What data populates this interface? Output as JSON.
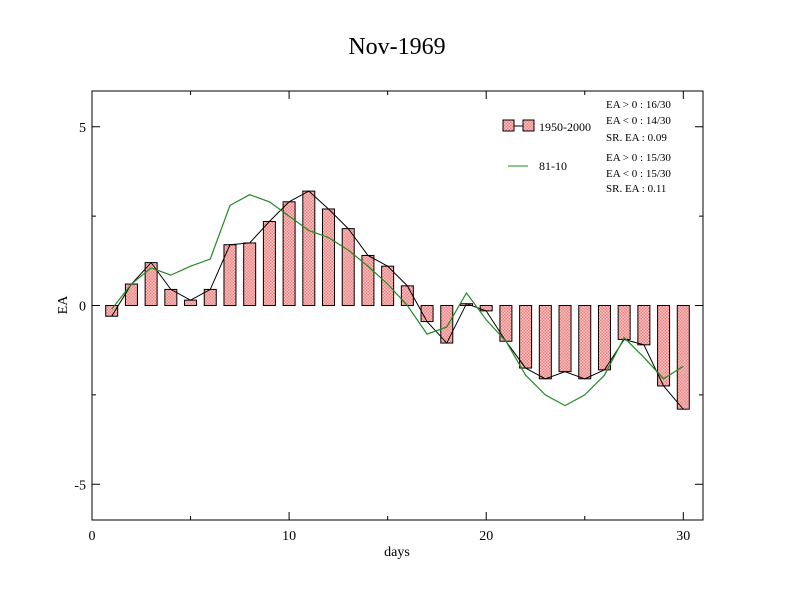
{
  "chart_data": {
    "type": "bar",
    "title": "Nov-1969",
    "xlabel": "days",
    "ylabel": "EA",
    "xlim": [
      0,
      31
    ],
    "ylim": [
      -6,
      6
    ],
    "x_ticks": [
      0,
      10,
      20,
      30
    ],
    "y_ticks": [
      -5,
      0,
      5
    ],
    "x": [
      1,
      2,
      3,
      4,
      5,
      6,
      7,
      8,
      9,
      10,
      11,
      12,
      13,
      14,
      15,
      16,
      17,
      18,
      19,
      20,
      21,
      22,
      23,
      24,
      25,
      26,
      27,
      28,
      29,
      30
    ],
    "series": [
      {
        "name": "1950-2000",
        "kind": "bar+line",
        "color": "#f08080",
        "values": [
          -0.3,
          0.6,
          1.2,
          0.45,
          0.15,
          0.45,
          1.7,
          1.75,
          2.35,
          2.9,
          3.2,
          2.7,
          2.15,
          1.4,
          1.1,
          0.55,
          -0.45,
          -1.05,
          0.05,
          -0.15,
          -1.0,
          -1.75,
          -2.05,
          -1.85,
          -2.05,
          -1.8,
          -0.95,
          -1.1,
          -2.25,
          -2.9
        ]
      },
      {
        "name": "81-10",
        "kind": "line",
        "color": "#228b22",
        "values": [
          -0.1,
          0.6,
          1.05,
          0.85,
          1.1,
          1.3,
          2.8,
          3.1,
          2.9,
          2.5,
          2.1,
          1.9,
          1.55,
          1.1,
          0.6,
          0.0,
          -0.8,
          -0.6,
          0.35,
          -0.4,
          -1.0,
          -1.95,
          -2.5,
          -2.8,
          -2.5,
          -1.95,
          -0.9,
          -1.45,
          -2.05,
          -1.7
        ]
      }
    ],
    "legend_position": "top-right"
  },
  "stats": {
    "s1": [
      "EA > 0 : 16/30",
      "EA < 0 : 14/30",
      "SR. EA :  0.09"
    ],
    "s2": [
      "EA > 0 : 15/30",
      "EA < 0 : 15/30",
      "SR. EA :  0.11"
    ]
  }
}
